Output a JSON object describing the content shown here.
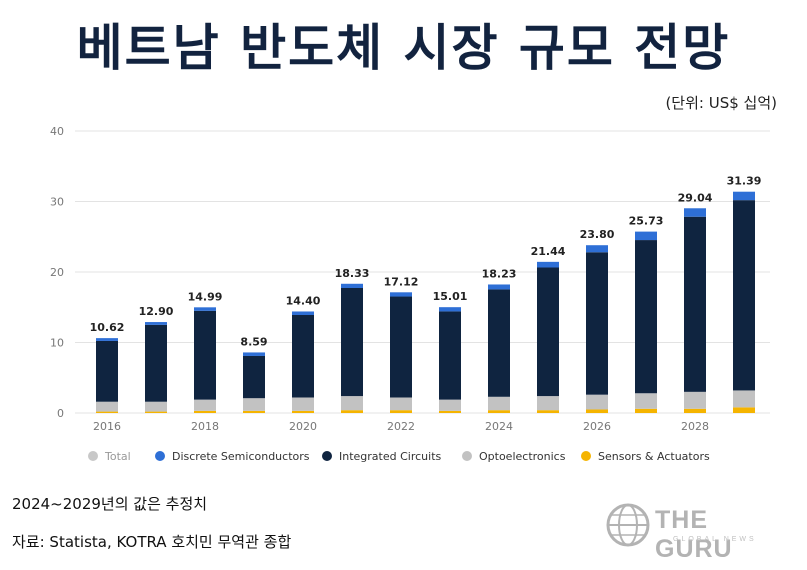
{
  "title": "베트남 반도체 시장 규모 전망",
  "unit": "(단위: US$ 십억)",
  "note": "2024~2029년의 값은 추정치",
  "source": "자료: Statista, KOTRA 호치민 무역관 종합",
  "logo": {
    "text": "THE GURU",
    "sub": "GLOBAL NEWS"
  },
  "colors": {
    "total": "#c8c8c8",
    "discrete": "#2e6fd6",
    "integrated": "#0f2440",
    "opto": "#c2c2c2",
    "sensors": "#f5b400"
  },
  "chart_data": {
    "type": "bar",
    "stacked": true,
    "categories": [
      "2016",
      "2017",
      "2018",
      "2019",
      "2020",
      "2021",
      "2022",
      "2023",
      "2024",
      "2025",
      "2026",
      "2027",
      "2028",
      "2029"
    ],
    "x_tick_labels": [
      "2016",
      "",
      "2018",
      "",
      "2020",
      "",
      "2022",
      "",
      "2024",
      "",
      "2026",
      "",
      "2028",
      ""
    ],
    "totals": [
      10.62,
      12.9,
      14.99,
      8.59,
      14.4,
      18.33,
      17.12,
      15.01,
      18.23,
      21.44,
      23.8,
      25.73,
      29.04,
      31.39
    ],
    "total_labels": [
      "10.62",
      "12.90",
      "14.99",
      "8.59",
      "14.40",
      "18.33",
      "17.12",
      "15.01",
      "18.23",
      "21.44",
      "23.80",
      "25.73",
      "29.04",
      "31.39"
    ],
    "series": [
      {
        "name": "Sensors & Actuators",
        "color": "#f5b400",
        "values": [
          0.2,
          0.2,
          0.3,
          0.3,
          0.3,
          0.4,
          0.4,
          0.3,
          0.4,
          0.4,
          0.5,
          0.6,
          0.6,
          0.8
        ]
      },
      {
        "name": "Optoelectronics",
        "color": "#c2c2c2",
        "values": [
          1.4,
          1.4,
          1.6,
          1.8,
          1.9,
          2.0,
          1.8,
          1.6,
          1.9,
          2.0,
          2.1,
          2.2,
          2.4,
          2.4
        ]
      },
      {
        "name": "Integrated Circuits",
        "color": "#0f2440",
        "values": [
          8.62,
          10.9,
          12.59,
          5.99,
          11.7,
          15.33,
          14.32,
          12.51,
          15.23,
          18.24,
          20.2,
          21.73,
          24.84,
          26.99
        ]
      },
      {
        "name": "Discrete Semiconductors",
        "color": "#2e6fd6",
        "values": [
          0.4,
          0.4,
          0.5,
          0.5,
          0.5,
          0.6,
          0.6,
          0.6,
          0.7,
          0.8,
          1.0,
          1.2,
          1.2,
          1.2
        ]
      }
    ],
    "legend": [
      {
        "name": "Total",
        "color": "#c8c8c8"
      },
      {
        "name": "Discrete Semiconductors",
        "color": "#2e6fd6"
      },
      {
        "name": "Integrated Circuits",
        "color": "#0f2440"
      },
      {
        "name": "Optoelectronics",
        "color": "#c2c2c2"
      },
      {
        "name": "Sensors & Actuators",
        "color": "#f5b400"
      }
    ],
    "legend_position": "bottom",
    "yticks": [
      "0",
      "10",
      "20",
      "30",
      "40"
    ],
    "ylim": [
      0,
      40
    ],
    "grid": true
  }
}
